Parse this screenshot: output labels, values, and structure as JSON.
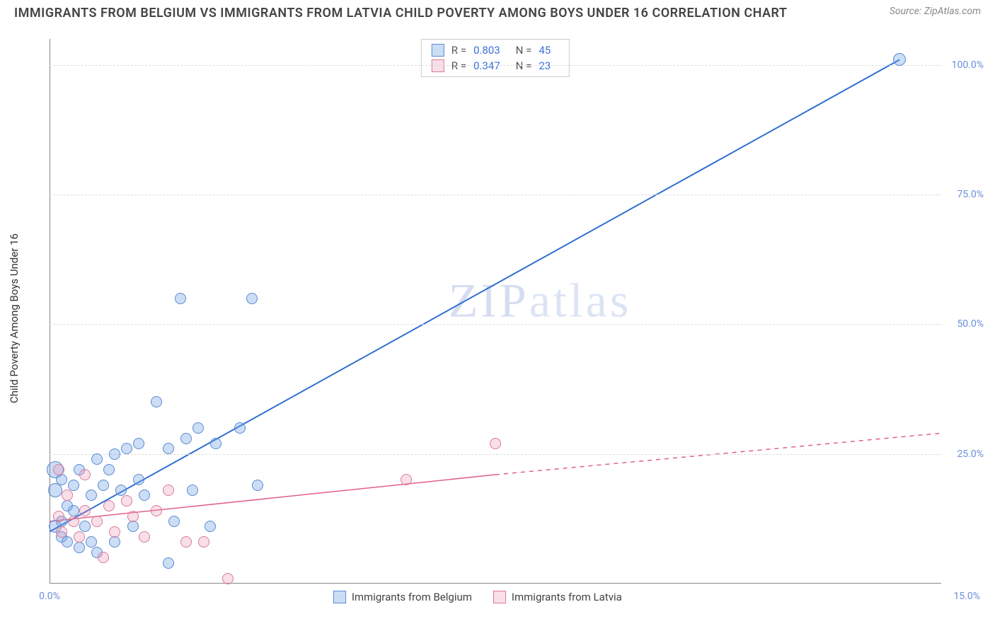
{
  "title": "IMMIGRANTS FROM BELGIUM VS IMMIGRANTS FROM LATVIA CHILD POVERTY AMONG BOYS UNDER 16 CORRELATION CHART",
  "source": "Source: ZipAtlas.com",
  "ylabel": "Child Poverty Among Boys Under 16",
  "watermark_a": "ZIP",
  "watermark_b": "atlas",
  "chart": {
    "type": "scatter",
    "xlim": [
      0,
      15
    ],
    "ylim": [
      0,
      105
    ],
    "yticks": [
      {
        "v": 25,
        "label": "25.0%"
      },
      {
        "v": 50,
        "label": "50.0%"
      },
      {
        "v": 75,
        "label": "75.0%"
      },
      {
        "v": 100,
        "label": "100.0%"
      }
    ],
    "xticks": [
      {
        "v": 0,
        "label": "0.0%",
        "side": "left"
      },
      {
        "v": 15,
        "label": "15.0%",
        "side": "right"
      }
    ],
    "background_color": "#ffffff",
    "grid_color": "#dcdcdc",
    "series": [
      {
        "key": "belgium",
        "label": "Immigrants from Belgium",
        "fill": "rgba(110,160,230,0.35)",
        "stroke": "#5a8ad0",
        "marker_r": 8,
        "trend_color": "#2f6ed0",
        "trend_width": 2,
        "trend": {
          "x1": 0,
          "y1": 10,
          "x2": 14.3,
          "y2": 101
        },
        "trend_dash_after_x": 14.3,
        "stats": {
          "R": "0.803",
          "N": "45"
        },
        "points": [
          {
            "x": 0.1,
            "y": 11,
            "r": 9
          },
          {
            "x": 0.1,
            "y": 18,
            "r": 10
          },
          {
            "x": 0.1,
            "y": 22,
            "r": 12
          },
          {
            "x": 0.2,
            "y": 12,
            "r": 8
          },
          {
            "x": 0.2,
            "y": 9,
            "r": 8
          },
          {
            "x": 0.2,
            "y": 20,
            "r": 8
          },
          {
            "x": 0.3,
            "y": 8,
            "r": 8
          },
          {
            "x": 0.3,
            "y": 15,
            "r": 8
          },
          {
            "x": 0.4,
            "y": 19,
            "r": 8
          },
          {
            "x": 0.4,
            "y": 14,
            "r": 8
          },
          {
            "x": 0.5,
            "y": 7,
            "r": 8
          },
          {
            "x": 0.5,
            "y": 22,
            "r": 8
          },
          {
            "x": 0.6,
            "y": 11,
            "r": 8
          },
          {
            "x": 0.7,
            "y": 8,
            "r": 8
          },
          {
            "x": 0.7,
            "y": 17,
            "r": 8
          },
          {
            "x": 0.8,
            "y": 24,
            "r": 8
          },
          {
            "x": 0.8,
            "y": 6,
            "r": 8
          },
          {
            "x": 0.9,
            "y": 19,
            "r": 8
          },
          {
            "x": 1.0,
            "y": 22,
            "r": 8
          },
          {
            "x": 1.1,
            "y": 8,
            "r": 8
          },
          {
            "x": 1.1,
            "y": 25,
            "r": 8
          },
          {
            "x": 1.2,
            "y": 18,
            "r": 8
          },
          {
            "x": 1.3,
            "y": 26,
            "r": 8
          },
          {
            "x": 1.4,
            "y": 11,
            "r": 8
          },
          {
            "x": 1.5,
            "y": 20,
            "r": 8
          },
          {
            "x": 1.5,
            "y": 27,
            "r": 8
          },
          {
            "x": 1.6,
            "y": 17,
            "r": 8
          },
          {
            "x": 1.8,
            "y": 35,
            "r": 8
          },
          {
            "x": 2.0,
            "y": 26,
            "r": 8
          },
          {
            "x": 2.0,
            "y": 4,
            "r": 8
          },
          {
            "x": 2.1,
            "y": 12,
            "r": 8
          },
          {
            "x": 2.2,
            "y": 55,
            "r": 8
          },
          {
            "x": 2.3,
            "y": 28,
            "r": 8
          },
          {
            "x": 2.4,
            "y": 18,
            "r": 8
          },
          {
            "x": 2.5,
            "y": 30,
            "r": 8
          },
          {
            "x": 2.7,
            "y": 11,
            "r": 8
          },
          {
            "x": 2.8,
            "y": 27,
            "r": 8
          },
          {
            "x": 3.2,
            "y": 30,
            "r": 8
          },
          {
            "x": 3.4,
            "y": 55,
            "r": 8
          },
          {
            "x": 3.5,
            "y": 19,
            "r": 8
          },
          {
            "x": 14.3,
            "y": 101,
            "r": 9
          }
        ]
      },
      {
        "key": "latvia",
        "label": "Immigrants from Latvia",
        "fill": "rgba(235,150,175,0.30)",
        "stroke": "#d97a9a",
        "marker_r": 8,
        "trend_color": "#e06088",
        "trend_width": 1.5,
        "trend": {
          "x1": 0,
          "y1": 12,
          "x2": 7.5,
          "y2": 21
        },
        "trend_dash_after_x": 7.5,
        "trend_dash_to": {
          "x": 15,
          "y": 29
        },
        "stats": {
          "R": "0.347",
          "N": "23"
        },
        "points": [
          {
            "x": 0.15,
            "y": 13,
            "r": 8
          },
          {
            "x": 0.15,
            "y": 22,
            "r": 8
          },
          {
            "x": 0.2,
            "y": 10,
            "r": 8
          },
          {
            "x": 0.3,
            "y": 17,
            "r": 8
          },
          {
            "x": 0.4,
            "y": 12,
            "r": 8
          },
          {
            "x": 0.5,
            "y": 9,
            "r": 8
          },
          {
            "x": 0.6,
            "y": 21,
            "r": 8
          },
          {
            "x": 0.6,
            "y": 14,
            "r": 8
          },
          {
            "x": 0.8,
            "y": 12,
            "r": 8
          },
          {
            "x": 0.9,
            "y": 5,
            "r": 8
          },
          {
            "x": 1.0,
            "y": 15,
            "r": 8
          },
          {
            "x": 1.1,
            "y": 10,
            "r": 8
          },
          {
            "x": 1.3,
            "y": 16,
            "r": 8
          },
          {
            "x": 1.4,
            "y": 13,
            "r": 8
          },
          {
            "x": 1.6,
            "y": 9,
            "r": 8
          },
          {
            "x": 1.8,
            "y": 14,
            "r": 8
          },
          {
            "x": 2.0,
            "y": 18,
            "r": 8
          },
          {
            "x": 2.3,
            "y": 8,
            "r": 8
          },
          {
            "x": 2.6,
            "y": 8,
            "r": 8
          },
          {
            "x": 3.0,
            "y": 1,
            "r": 8
          },
          {
            "x": 6.0,
            "y": 20,
            "r": 8
          },
          {
            "x": 7.5,
            "y": 27,
            "r": 8
          }
        ]
      }
    ]
  },
  "legend": {
    "r_label": "R =",
    "n_label": "N ="
  }
}
